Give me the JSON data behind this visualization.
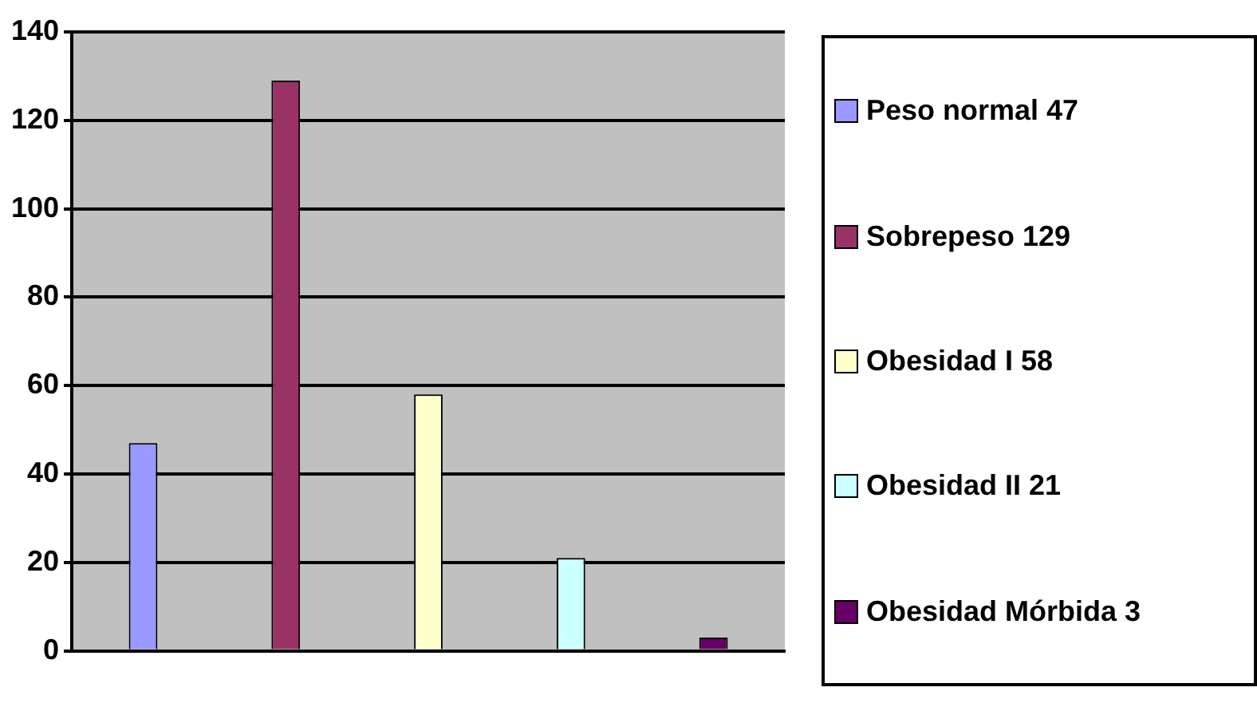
{
  "chart_data": {
    "type": "bar",
    "categories": [
      null,
      null,
      null,
      null,
      null
    ],
    "series": [
      {
        "name": "Peso normal 47",
        "color": "#9999ff",
        "values": [
          47,
          null,
          null,
          null,
          null
        ]
      },
      {
        "name": "Sobrepeso 129",
        "color": "#993366",
        "values": [
          null,
          129,
          null,
          null,
          null
        ]
      },
      {
        "name": "Obesidad I 58",
        "color": "#ffffcc",
        "values": [
          null,
          null,
          58,
          null,
          null
        ]
      },
      {
        "name": "Obesidad II 21",
        "color": "#ccffff",
        "values": [
          null,
          null,
          null,
          21,
          null
        ]
      },
      {
        "name": "Obesidad Mórbida 3",
        "color": "#660066",
        "values": [
          null,
          null,
          null,
          null,
          3
        ]
      }
    ],
    "ylim": [
      0,
      140
    ],
    "yticks": [
      0,
      20,
      40,
      60,
      80,
      100,
      120,
      140
    ],
    "grid": "y",
    "legend": "right"
  }
}
